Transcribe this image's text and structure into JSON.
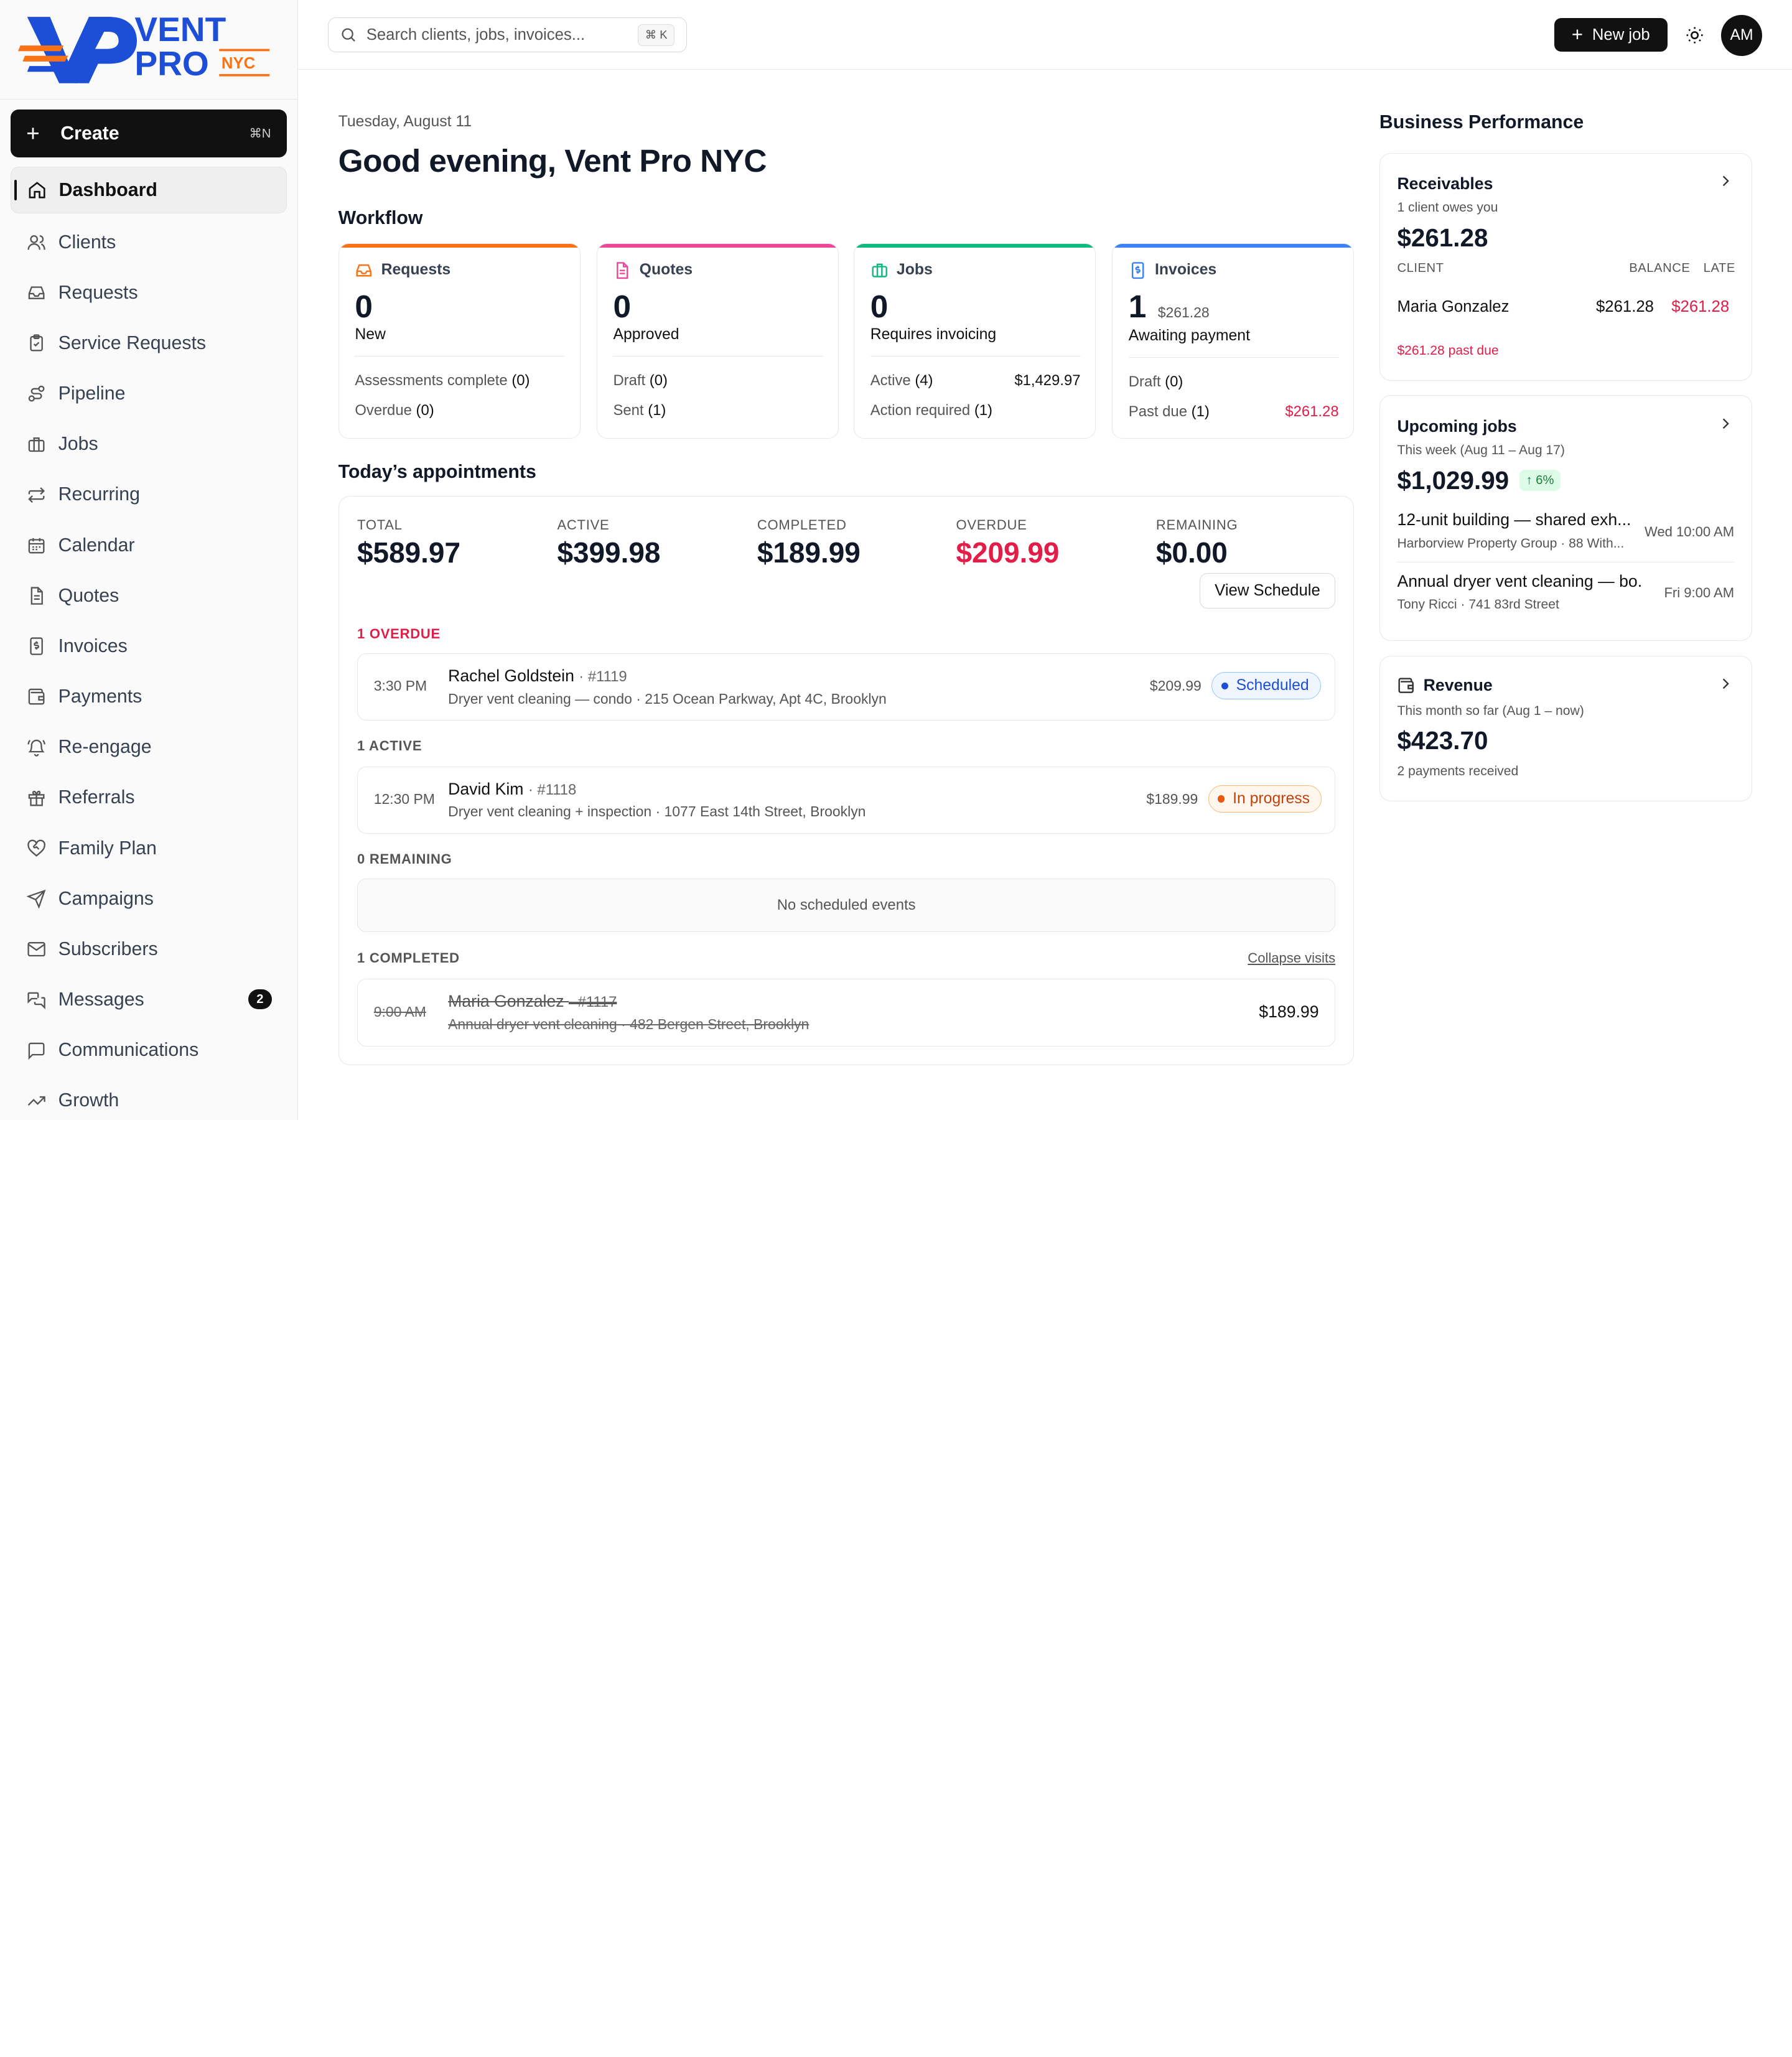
{
  "brand": {
    "line1": "VENT",
    "line2": "PRO",
    "line3": "NYC"
  },
  "sidebar": {
    "create_label": "Create",
    "create_shortcut": "⌘N",
    "items": [
      {
        "label": "Dashboard"
      },
      {
        "label": "Clients"
      },
      {
        "label": "Requests"
      },
      {
        "label": "Service Requests"
      },
      {
        "label": "Pipeline"
      },
      {
        "label": "Jobs"
      },
      {
        "label": "Recurring"
      },
      {
        "label": "Calendar"
      },
      {
        "label": "Quotes"
      },
      {
        "label": "Invoices"
      },
      {
        "label": "Payments"
      },
      {
        "label": "Re-engage"
      },
      {
        "label": "Referrals"
      },
      {
        "label": "Family Plan"
      },
      {
        "label": "Campaigns"
      },
      {
        "label": "Subscribers"
      },
      {
        "label": "Messages",
        "badge": "2"
      },
      {
        "label": "Communications"
      },
      {
        "label": "Growth"
      }
    ]
  },
  "topbar": {
    "search_placeholder": "Search clients, jobs, invoices...",
    "search_shortcut": "⌘ K",
    "new_job_label": "New job",
    "avatar_initials": "AM"
  },
  "main": {
    "date": "Tuesday, August 11",
    "greeting": "Good evening, Vent Pro NYC",
    "workflow_title": "Workflow",
    "workflow": {
      "requests": {
        "title": "Requests",
        "count": "0",
        "sub": "New",
        "row1_label": "Assessments complete",
        "row1_count": "(0)",
        "row2_label": "Overdue",
        "row2_count": "(0)",
        "color": "#f97316"
      },
      "quotes": {
        "title": "Quotes",
        "count": "0",
        "sub": "Approved",
        "row1_label": "Draft",
        "row1_count": "(0)",
        "row2_label": "Sent",
        "row2_count": "(1)",
        "color": "#ec4899"
      },
      "jobs": {
        "title": "Jobs",
        "count": "0",
        "sub": "Requires invoicing",
        "row1_label": "Active",
        "row1_count": "(4)",
        "row1_amount": "$1,429.97",
        "row2_label": "Action required",
        "row2_count": "(1)",
        "color": "#10b981"
      },
      "invoices": {
        "title": "Invoices",
        "count": "1",
        "count_amount": "$261.28",
        "sub": "Awaiting payment",
        "row1_label": "Draft",
        "row1_count": "(0)",
        "row2_label": "Past due",
        "row2_count": "(1)",
        "row2_amount": "$261.28",
        "color": "#3b82f6"
      }
    },
    "appointments_title": "Today’s appointments",
    "stats": {
      "total_label": "TOTAL",
      "total": "$589.97",
      "active_label": "ACTIVE",
      "active": "$399.98",
      "completed_label": "COMPLETED",
      "completed": "$189.99",
      "overdue_label": "OVERDUE",
      "overdue": "$209.99",
      "remaining_label": "REMAINING",
      "remaining": "$0.00"
    },
    "view_schedule": "View Schedule",
    "groups": {
      "overdue": "1 OVERDUE",
      "active": "1 ACTIVE",
      "remaining": "0 REMAINING",
      "completed": "1 COMPLETED"
    },
    "collapse_label": "Collapse visits",
    "empty_label": "No scheduled events",
    "overdue_appt": {
      "time": "3:30 PM",
      "name": "Rachel Goldstein",
      "num": "· #1119",
      "desc": "Dryer vent cleaning — condo · 215 Ocean Parkway, Apt 4C, Brooklyn",
      "price": "$209.99",
      "status": "Scheduled"
    },
    "active_appt": {
      "time": "12:30 PM",
      "name": "David Kim",
      "num": "· #1118",
      "desc": "Dryer vent cleaning + inspection · 1077 East 14th Street, Brooklyn",
      "price": "$189.99",
      "status": "In progress"
    },
    "completed_appt": {
      "time": "9:00 AM",
      "name": "Maria Gonzalez",
      "num": "· #1117",
      "desc": "Annual dryer vent cleaning · 482 Bergen Street, Brooklyn",
      "price": "$189.99"
    }
  },
  "performance": {
    "title": "Business Performance",
    "receivables": {
      "title": "Receivables",
      "sub": "1 client owes you",
      "amount": "$261.28",
      "col_client": "CLIENT",
      "col_balance": "BALANCE",
      "col_late": "LATE",
      "client": "Maria Gonzalez",
      "balance": "$261.28",
      "late": "$261.28",
      "past_due": "$261.28 past due"
    },
    "upcoming": {
      "title": "Upcoming jobs",
      "sub": "This week (Aug 11 – Aug 17)",
      "amount": "$1,029.99",
      "trend": "6%",
      "jobs": [
        {
          "title": "12-unit building — shared exh...",
          "sub": "Harborview Property Group · 88 With...",
          "when": "Wed 10:00 AM"
        },
        {
          "title": "Annual dryer vent cleaning — bo...",
          "sub": "Tony Ricci · 741 83rd Street",
          "when": "Fri 9:00 AM"
        }
      ]
    },
    "revenue": {
      "title": "Revenue",
      "sub": "This month so far (Aug 1 – now)",
      "amount": "$423.70",
      "note": "2 payments received"
    }
  }
}
